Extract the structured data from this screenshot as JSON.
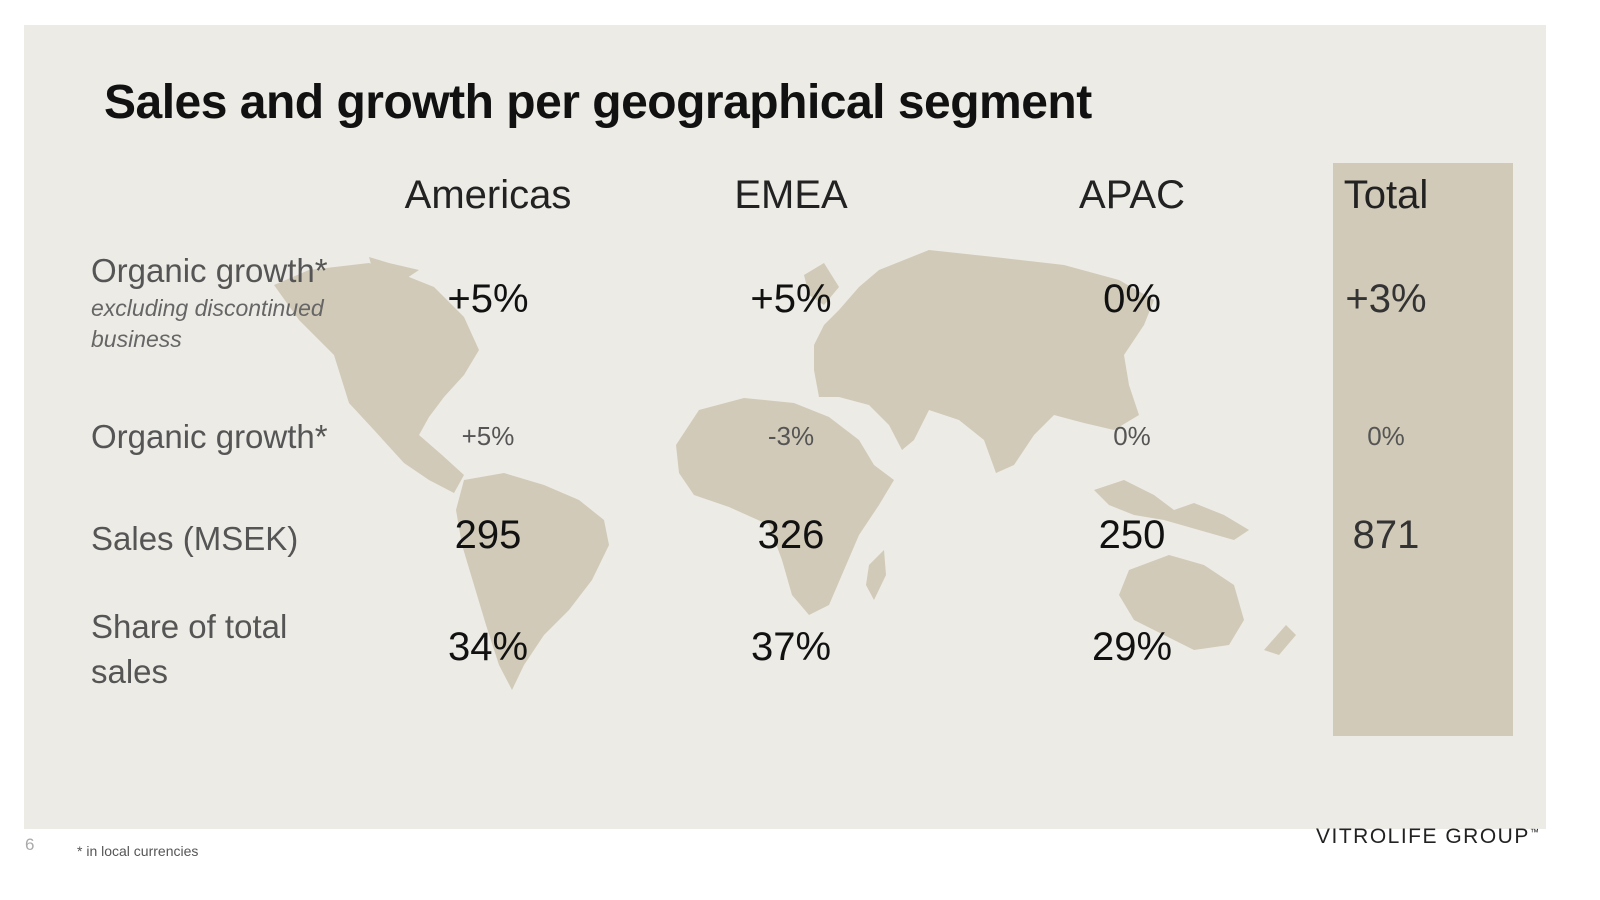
{
  "title": "Sales and growth per geographical segment",
  "columns": [
    "Americas",
    "EMEA",
    "APAC",
    "Total"
  ],
  "rows": {
    "organic_growth_excl": {
      "label": "Organic growth*",
      "sublabel": "excluding discontinued business",
      "values": [
        "+5%",
        "+5%",
        "0%",
        "+3%"
      ]
    },
    "organic_growth": {
      "label": "Organic growth*",
      "values": [
        "+5%",
        "-3%",
        "0%",
        "0%"
      ]
    },
    "sales": {
      "label": "Sales (MSEK)",
      "values": [
        "295",
        "326",
        "250",
        "871"
      ]
    },
    "share": {
      "label": "Share of total sales",
      "values": [
        "34%",
        "37%",
        "29%",
        ""
      ]
    }
  },
  "footer": {
    "page_number": "6",
    "footnote": "* in local currencies",
    "logo_text": "VITROLIFE GROUP",
    "logo_mark": "™"
  },
  "colors": {
    "background": "#ecebe5",
    "map": "#d1cab8",
    "total_band": "#d1cab8"
  }
}
